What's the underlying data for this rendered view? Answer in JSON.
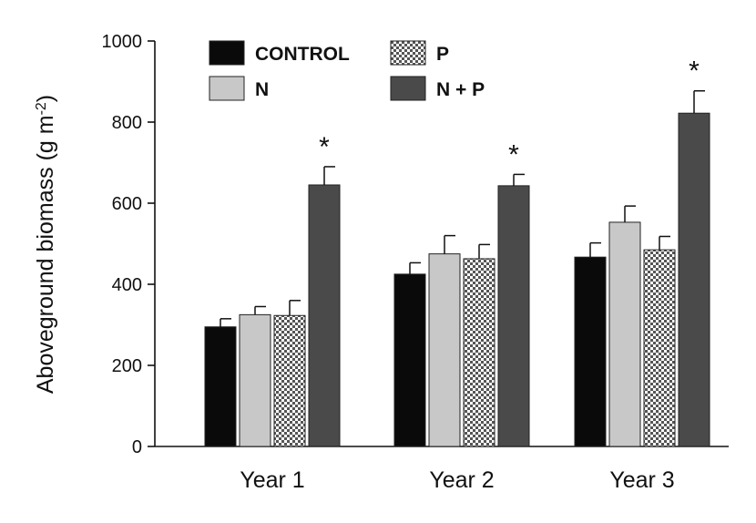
{
  "chart_data": {
    "type": "bar",
    "title": "",
    "xlabel": "",
    "ylabel": "Aboveground biomass (g m",
    "ylabel_superscript": "-2",
    "ylabel_close": ")",
    "ylim": [
      0,
      1000
    ],
    "yticks": [
      0,
      200,
      400,
      600,
      800,
      1000
    ],
    "categories": [
      "Year 1",
      "Year 2",
      "Year 3"
    ],
    "legend_position": "top-left",
    "series": [
      {
        "name": "CONTROL",
        "values": [
          295,
          425,
          467
        ],
        "errors": [
          20,
          28,
          35
        ],
        "color": "#0a0a0a",
        "pattern": "solid"
      },
      {
        "name": "N",
        "values": [
          325,
          475,
          553
        ],
        "errors": [
          20,
          45,
          40
        ],
        "color": "#c8c8c8",
        "pattern": "solid"
      },
      {
        "name": "P",
        "values": [
          323,
          463,
          485
        ],
        "errors": [
          37,
          35,
          33
        ],
        "color": "#ffffff",
        "pattern": "checker"
      },
      {
        "name": "N + P",
        "values": [
          645,
          643,
          822
        ],
        "errors": [
          45,
          28,
          55
        ],
        "color": "#4a4a4a",
        "pattern": "solid"
      }
    ],
    "annotations": [
      {
        "text": "*",
        "series": "N + P",
        "category": "Year 1"
      },
      {
        "text": "*",
        "series": "N + P",
        "category": "Year 2"
      },
      {
        "text": "*",
        "series": "N + P",
        "category": "Year 3"
      }
    ]
  }
}
